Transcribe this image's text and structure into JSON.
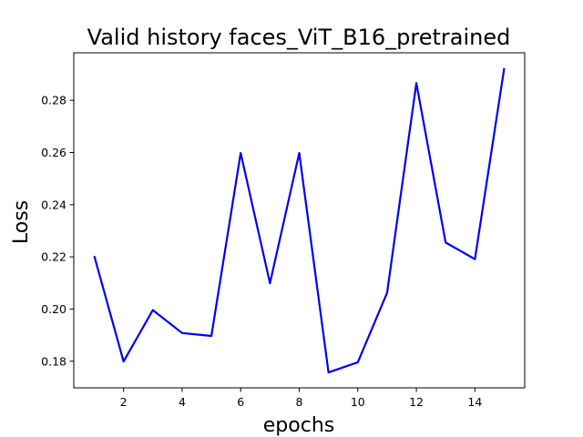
{
  "chart_data": {
    "type": "line",
    "title": "Valid history faces_ViT_B16_pretrained",
    "xlabel": "epochs",
    "ylabel": "Loss",
    "xlim": [
      0.3,
      15.7
    ],
    "ylim": [
      0.1698,
      0.2982
    ],
    "xticks": [
      2,
      4,
      6,
      8,
      10,
      12,
      14
    ],
    "xtick_labels": [
      "2",
      "4",
      "6",
      "8",
      "10",
      "12",
      "14"
    ],
    "yticks": [
      0.18,
      0.2,
      0.22,
      0.24,
      0.26,
      0.28
    ],
    "ytick_labels": [
      "0.18",
      "0.20",
      "0.22",
      "0.24",
      "0.26",
      "0.28"
    ],
    "grid": false,
    "series": [
      {
        "name": "valid loss",
        "color": "#0000ee",
        "x": [
          1,
          2,
          3,
          4,
          5,
          6,
          7,
          8,
          9,
          10,
          11,
          12,
          13,
          14,
          15
        ],
        "values": [
          0.2203,
          0.1799,
          0.1996,
          0.1908,
          0.1897,
          0.2598,
          0.2099,
          0.2598,
          0.1757,
          0.1796,
          0.2062,
          0.2866,
          0.2255,
          0.2191,
          0.2923
        ]
      }
    ]
  }
}
